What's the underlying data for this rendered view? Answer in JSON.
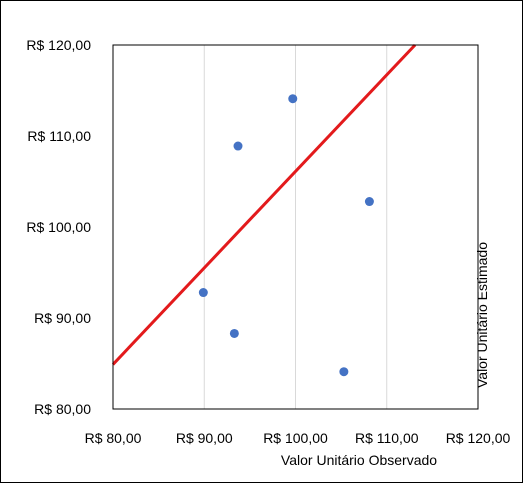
{
  "chart_data": {
    "type": "scatter",
    "xlabel": "Valor Unitário Observado",
    "ylabel": "Valor Unitário Estimado",
    "xlim": [
      80,
      120
    ],
    "ylim": [
      80,
      120
    ],
    "x_ticks": [
      80,
      90,
      100,
      110,
      120
    ],
    "y_ticks": [
      80,
      90,
      100,
      110,
      120
    ],
    "x_tick_labels": [
      "R$ 80,00",
      "R$ 90,00",
      "R$ 100,00",
      "R$ 110,00",
      "R$ 120,00"
    ],
    "y_tick_labels": [
      "R$ 80,00",
      "R$ 90,00",
      "R$ 100,00",
      "R$ 110,00",
      "R$ 120,00"
    ],
    "grid": "vertical",
    "series": [
      {
        "type": "scatter",
        "color": "#4472c4",
        "points": [
          {
            "x": 89.9,
            "y": 92.8
          },
          {
            "x": 93.3,
            "y": 88.3
          },
          {
            "x": 93.7,
            "y": 108.9
          },
          {
            "x": 99.7,
            "y": 114.1
          },
          {
            "x": 105.3,
            "y": 84.1
          },
          {
            "x": 108.1,
            "y": 102.8
          }
        ]
      },
      {
        "type": "line",
        "color": "#e31a1c",
        "points": [
          {
            "x": 80,
            "y": 84.9
          },
          {
            "x": 113.1,
            "y": 120
          }
        ]
      }
    ]
  }
}
